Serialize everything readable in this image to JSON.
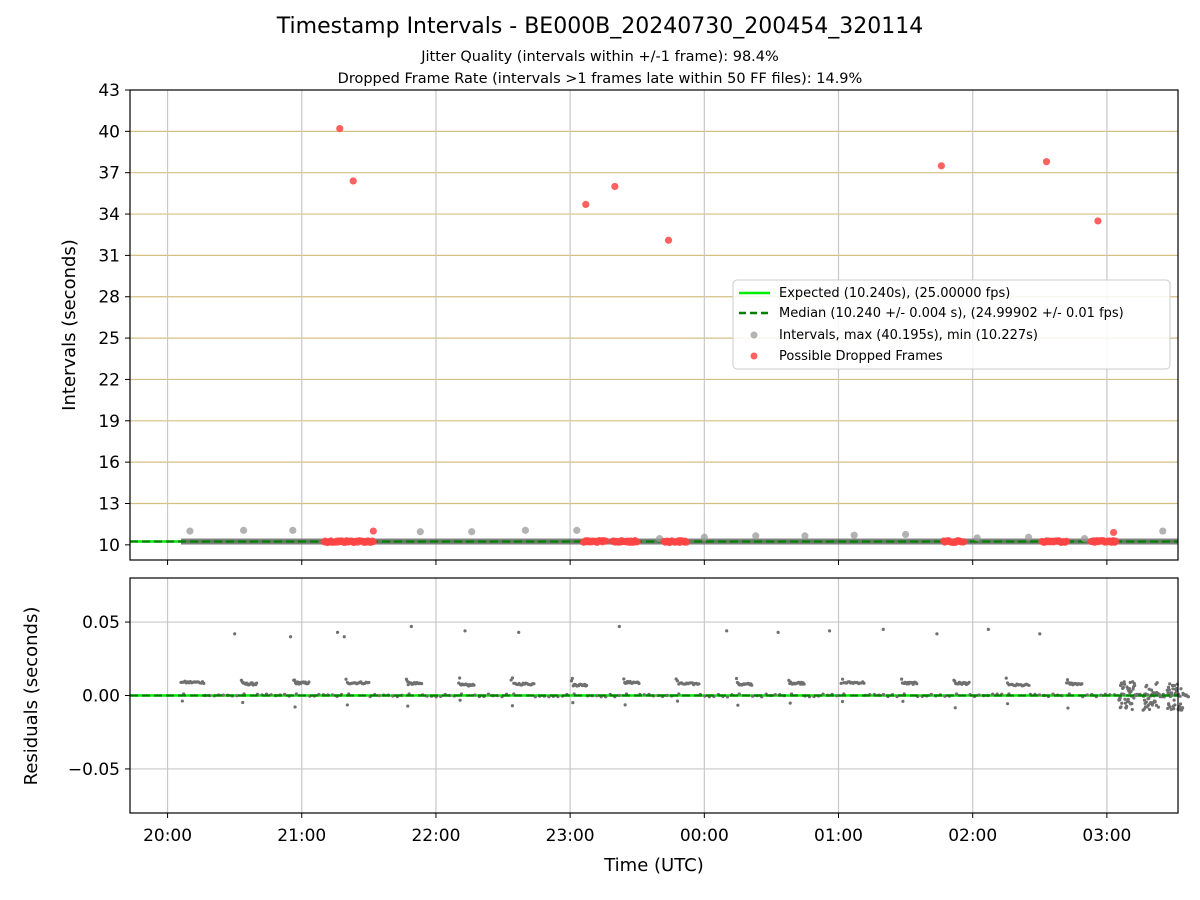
{
  "header": {
    "title": "Timestamp Intervals - BE000B_20240730_200454_320114",
    "subtitle1": "Jitter Quality (intervals within +/-1 frame): 98.4%",
    "subtitle2": "Dropped Frame Rate (intervals >1 frames late within 50 FF files): 14.9%"
  },
  "chart_data": [
    {
      "type": "scatter",
      "panel": "intervals",
      "ylabel": "Intervals (seconds)",
      "xlabel": "",
      "ylim": [
        8.9,
        43
      ],
      "yticks": [
        "10",
        "13",
        "16",
        "19",
        "22",
        "25",
        "28",
        "31",
        "34",
        "37",
        "40",
        "43"
      ],
      "xlim_hours": [
        19.72,
        27.53
      ],
      "xticks": [
        "20:00",
        "21:00",
        "22:00",
        "23:00",
        "00:00",
        "01:00",
        "02:00",
        "03:00"
      ],
      "grid": "on (vertical grey; horizontal tan)",
      "legend_position": "right",
      "legend": [
        "Expected (10.240s), (25.00000 fps)",
        "Median (10.240 +/- 0.004 s), (24.99902 +/- 0.01 fps)",
        "Intervals, max (40.195s), min (10.227s)",
        "Possible Dropped Frames"
      ],
      "expected": 10.24,
      "median": 10.24,
      "colors": {
        "expected": "#00ee00",
        "median": "#008000",
        "intervals": "#999999",
        "dropped": "#ff4444",
        "hgrid": "#d4c080"
      },
      "interval_points": [
        {
          "t": "20:10",
          "y": 11.0
        },
        {
          "t": "20:34",
          "y": 11.05
        },
        {
          "t": "20:56",
          "y": 11.05
        },
        {
          "t": "21:53",
          "y": 10.95
        },
        {
          "t": "22:16",
          "y": 10.95
        },
        {
          "t": "22:40",
          "y": 11.05
        },
        {
          "t": "23:03",
          "y": 11.05
        },
        {
          "t": "23:40",
          "y": 10.45
        },
        {
          "t": "00:00",
          "y": 10.55
        },
        {
          "t": "00:23",
          "y": 10.65
        },
        {
          "t": "00:45",
          "y": 10.65
        },
        {
          "t": "01:07",
          "y": 10.7
        },
        {
          "t": "01:30",
          "y": 10.75
        },
        {
          "t": "02:02",
          "y": 10.5
        },
        {
          "t": "02:25",
          "y": 10.55
        },
        {
          "t": "02:50",
          "y": 10.45
        },
        {
          "t": "03:25",
          "y": 11.0
        }
      ],
      "dropped_points": [
        {
          "t": "21:17",
          "y": 40.2
        },
        {
          "t": "21:23",
          "y": 36.4
        },
        {
          "t": "21:32",
          "y": 11.0
        },
        {
          "t": "23:07",
          "y": 34.7
        },
        {
          "t": "23:20",
          "y": 36.0
        },
        {
          "t": "23:44",
          "y": 32.1
        },
        {
          "t": "01:46",
          "y": 37.5
        },
        {
          "t": "02:33",
          "y": 37.8
        },
        {
          "t": "02:56",
          "y": 33.5
        },
        {
          "t": "03:03",
          "y": 10.9
        }
      ],
      "dropped_clusters": [
        {
          "start": "21:10",
          "end": "21:32",
          "y": 10.24
        },
        {
          "start": "23:06",
          "end": "23:16",
          "y": 10.24
        },
        {
          "start": "23:19",
          "end": "23:30",
          "y": 10.24
        },
        {
          "start": "23:42",
          "end": "23:52",
          "y": 10.24
        },
        {
          "start": "01:47",
          "end": "01:56",
          "y": 10.24
        },
        {
          "start": "02:31",
          "end": "02:42",
          "y": 10.24
        },
        {
          "start": "02:53",
          "end": "03:04",
          "y": 10.24
        }
      ]
    },
    {
      "type": "scatter",
      "panel": "residuals",
      "ylabel": "Residuals (seconds)",
      "xlabel": "Time (UTC)",
      "ylim": [
        -0.08,
        0.08
      ],
      "yticks": [
        "0.05",
        "0.00",
        "−0.05"
      ],
      "ytick_values": [
        0.05,
        0.0,
        -0.05
      ],
      "xlim_hours": [
        19.72,
        27.53
      ],
      "xticks": [
        "20:00",
        "21:00",
        "22:00",
        "23:00",
        "00:00",
        "01:00",
        "02:00",
        "03:00"
      ],
      "grid": "on",
      "colors": {
        "points": "#707070",
        "zero": "#00ee00",
        "median": "#008000"
      },
      "outliers": [
        {
          "t": "20:30",
          "y": 0.042
        },
        {
          "t": "20:55",
          "y": 0.04
        },
        {
          "t": "21:16",
          "y": 0.043
        },
        {
          "t": "21:19",
          "y": 0.04
        },
        {
          "t": "21:49",
          "y": 0.047
        },
        {
          "t": "22:13",
          "y": 0.044
        },
        {
          "t": "22:37",
          "y": 0.043
        },
        {
          "t": "23:22",
          "y": 0.047
        },
        {
          "t": "00:10",
          "y": 0.044
        },
        {
          "t": "00:33",
          "y": 0.043
        },
        {
          "t": "00:56",
          "y": 0.044
        },
        {
          "t": "01:20",
          "y": 0.045
        },
        {
          "t": "01:44",
          "y": 0.042
        },
        {
          "t": "02:07",
          "y": 0.045
        },
        {
          "t": "02:30",
          "y": 0.042
        }
      ]
    }
  ]
}
